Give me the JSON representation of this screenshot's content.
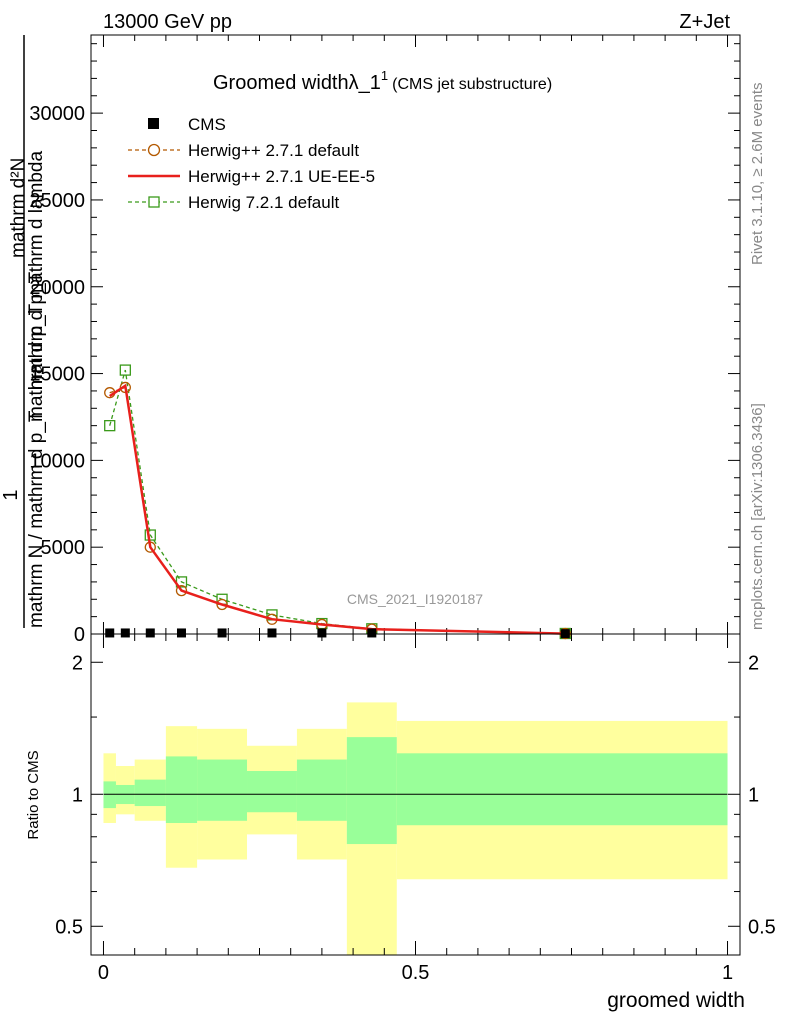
{
  "header": {
    "energy": "13000 GeV pp",
    "process": "Z+Jet"
  },
  "side_labels": {
    "rivet": "Rivet 3.1.10, ≥ 2.6M events",
    "mcplots": "mcplots.cern.ch [arXiv:1306.3436]"
  },
  "watermark": "CMS_2021_I1920187",
  "colors": {
    "cms": "#000000",
    "herwig_default": "#b35900",
    "herwig_ueee5": "#e8201c",
    "herwig7": "#3a9a1a",
    "band_outer": "#ffff9e",
    "band_inner": "#99ff99"
  },
  "chart_data": [
    {
      "type": "line",
      "title_main": "Groomed widthλ_1",
      "title_sup": "1",
      "title_paren": "(CMS jet substructure)",
      "ylabel_num_1": "1",
      "ylabel_num_2": "mathrm d²N",
      "ylabel_den_1": "mathrm N / mathrm d p_T",
      "ylabel_den_2": "mathrm d p_T mathrm d lambda",
      "ylabel_den_3": "mathrm d p_T",
      "xlim": [
        -0.02,
        1.02
      ],
      "ylim": [
        0,
        34500
      ],
      "yticks": [
        0,
        5000,
        10000,
        15000,
        20000,
        25000,
        30000
      ],
      "ytick_labels": [
        "0",
        "5000",
        "10000",
        "15000",
        "20000",
        "25000",
        "30000"
      ],
      "series": [
        {
          "name": "CMS",
          "marker": "square-filled",
          "x": [
            0.01,
            0.035,
            0.075,
            0.125,
            0.19,
            0.27,
            0.35,
            0.43,
            0.74
          ],
          "y": [
            60,
            60,
            60,
            60,
            60,
            60,
            60,
            60,
            20
          ]
        },
        {
          "name": "Herwig++ 2.7.1 default",
          "marker": "circle-open",
          "x": [
            0.01,
            0.035,
            0.075,
            0.125,
            0.19,
            0.27,
            0.35,
            0.43,
            0.74
          ],
          "y": [
            13900,
            14200,
            5000,
            2500,
            1700,
            850,
            550,
            280,
            25
          ]
        },
        {
          "name": "Herwig++ 2.7.1 UE-EE-5",
          "marker": "none",
          "x": [
            0.01,
            0.035,
            0.075,
            0.125,
            0.19,
            0.27,
            0.35,
            0.43,
            0.74
          ],
          "y": [
            13700,
            14300,
            5000,
            2500,
            1700,
            850,
            550,
            280,
            25
          ]
        },
        {
          "name": "Herwig 7.2.1 default",
          "marker": "square-open",
          "x": [
            0.01,
            0.035,
            0.075,
            0.125,
            0.19,
            0.27,
            0.35,
            0.43,
            0.74
          ],
          "y": [
            12000,
            15200,
            5700,
            3000,
            2000,
            1100,
            600,
            300,
            30
          ]
        }
      ]
    },
    {
      "type": "area",
      "ylabel": "Ratio to CMS",
      "xlabel": "groomed width",
      "xlim": [
        -0.02,
        1.02
      ],
      "ylim": [
        0.43,
        2.32
      ],
      "yticks": [
        0.5,
        1,
        2
      ],
      "ytick_labels": [
        "0.5",
        "1",
        "2"
      ],
      "xticks": [
        0,
        0.5,
        1
      ],
      "xtick_labels": [
        "0",
        "0.5",
        "1"
      ],
      "bins": [
        {
          "lo": 0.0,
          "hi": 0.02,
          "inner": [
            0.93,
            1.07
          ],
          "outer": [
            0.86,
            1.24
          ]
        },
        {
          "lo": 0.02,
          "hi": 0.05,
          "inner": [
            0.95,
            1.05
          ],
          "outer": [
            0.9,
            1.16
          ]
        },
        {
          "lo": 0.05,
          "hi": 0.1,
          "inner": [
            0.94,
            1.08
          ],
          "outer": [
            0.87,
            1.2
          ]
        },
        {
          "lo": 0.1,
          "hi": 0.15,
          "inner": [
            0.86,
            1.22
          ],
          "outer": [
            0.68,
            1.43
          ]
        },
        {
          "lo": 0.15,
          "hi": 0.23,
          "inner": [
            0.87,
            1.2
          ],
          "outer": [
            0.71,
            1.41
          ]
        },
        {
          "lo": 0.23,
          "hi": 0.31,
          "inner": [
            0.91,
            1.13
          ],
          "outer": [
            0.81,
            1.29
          ]
        },
        {
          "lo": 0.31,
          "hi": 0.39,
          "inner": [
            0.87,
            1.2
          ],
          "outer": [
            0.71,
            1.41
          ]
        },
        {
          "lo": 0.39,
          "hi": 0.47,
          "inner": [
            0.77,
            1.35
          ],
          "outer": [
            0.43,
            1.62
          ]
        },
        {
          "lo": 0.47,
          "hi": 1.0,
          "inner": [
            0.85,
            1.24
          ],
          "outer": [
            0.64,
            1.47
          ]
        }
      ]
    }
  ]
}
